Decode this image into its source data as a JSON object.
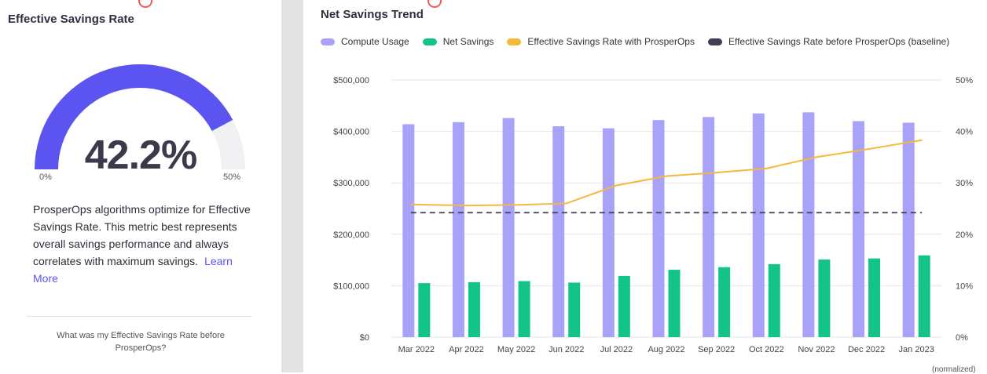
{
  "left_panel": {
    "title": "Effective Savings Rate",
    "gauge": {
      "value_text": "42.2%",
      "value": 42.2,
      "min_label": "0%",
      "max_label": "50%",
      "min": 0,
      "max": 50
    },
    "description": "ProsperOps algorithms optimize for Effective Savings Rate. This metric best represents overall savings performance and always correlates with maximum savings.",
    "learn_more": "Learn More",
    "question": "What was my Effective Savings Rate before ProsperOps?"
  },
  "chart_panel": {
    "title": "Net Savings Trend",
    "footer_fragment": "(normalized)"
  },
  "colors": {
    "compute": "#a8a3f8",
    "net": "#13c48a",
    "esr": "#f6b73c",
    "baseline": "#3f3f56",
    "gauge_fill": "#5b54f0",
    "gauge_track": "#f1f1f3"
  },
  "chart_data": {
    "type": "bar",
    "categories": [
      "Mar 2022",
      "Apr 2022",
      "May 2022",
      "Jun 2022",
      "Jul 2022",
      "Aug 2022",
      "Sep 2022",
      "Oct 2022",
      "Nov 2022",
      "Dec 2022",
      "Jan 2023"
    ],
    "series": [
      {
        "name": "Compute Usage",
        "type": "bar",
        "axis": "left",
        "values": [
          414000,
          418000,
          426000,
          410000,
          406000,
          422000,
          428000,
          435000,
          437000,
          420000,
          417000
        ]
      },
      {
        "name": "Net Savings",
        "type": "bar",
        "axis": "left",
        "values": [
          105000,
          107000,
          109000,
          106000,
          119000,
          131000,
          136000,
          142000,
          151000,
          153000,
          159000
        ]
      },
      {
        "name": "Effective Savings Rate with ProsperOps",
        "type": "line",
        "axis": "right",
        "values": [
          25.8,
          25.6,
          25.7,
          26.0,
          29.5,
          31.3,
          32.0,
          32.8,
          35.0,
          36.5,
          38.3
        ]
      },
      {
        "name": "Effective Savings Rate before ProsperOps (baseline)",
        "type": "line",
        "dashed": true,
        "axis": "right",
        "values": [
          24.2,
          24.2,
          24.2,
          24.2,
          24.2,
          24.2,
          24.2,
          24.2,
          24.2,
          24.2,
          24.2
        ]
      }
    ],
    "y_left": {
      "ticks": [
        "$0",
        "$100,000",
        "$200,000",
        "$300,000",
        "$400,000",
        "$500,000"
      ],
      "range": [
        0,
        500000
      ]
    },
    "y_right": {
      "ticks": [
        "0%",
        "10%",
        "20%",
        "30%",
        "40%",
        "50%"
      ],
      "range": [
        0,
        50
      ]
    },
    "grid": true,
    "legend_position": "top"
  }
}
